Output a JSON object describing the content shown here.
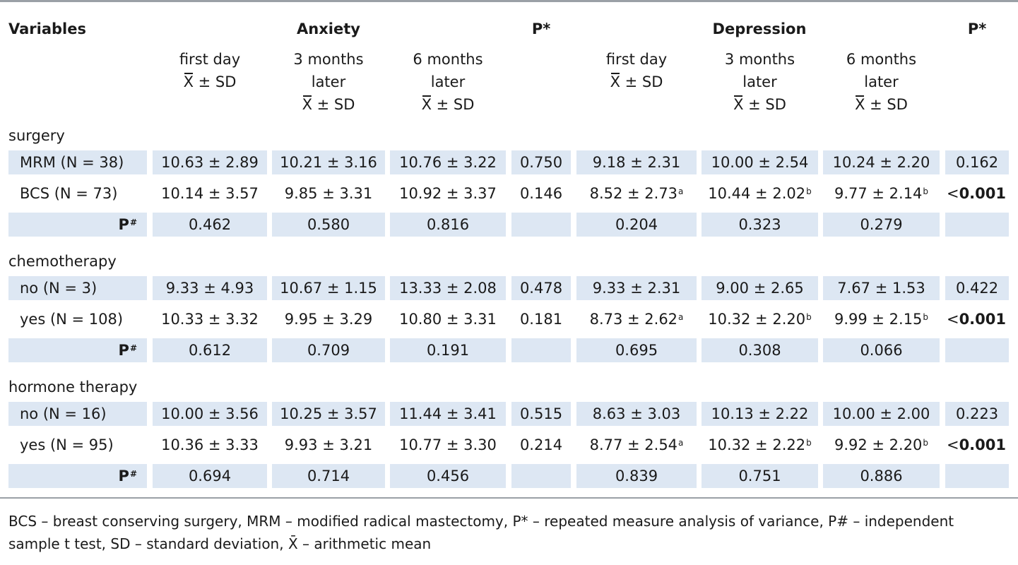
{
  "header": {
    "variables": "Variables",
    "anxiety": "Anxiety",
    "p_star": "P*",
    "depression": "Depression",
    "p_star_2": "P*"
  },
  "subheader": [
    [
      "first day",
      "X̄ ± SD"
    ],
    [
      "3 months",
      "later",
      "X̄ ± SD"
    ],
    [
      "6 months",
      "later",
      "X̄ ± SD"
    ],
    [],
    [
      "first day",
      "X̄ ± SD"
    ],
    [
      "3 months",
      "later",
      "X̄ ± SD"
    ],
    [
      "6 months",
      "later",
      "X̄ ± SD"
    ],
    []
  ],
  "groups": [
    {
      "label": "surgery",
      "rows": [
        {
          "label": "MRM (N = 38)",
          "cells": [
            "10.63 ± 2.89",
            "10.21 ± 3.16",
            "10.76 ± 3.22",
            "0.750",
            "9.18 ± 2.31",
            "10.00 ± 2.54",
            "10.24 ± 2.20",
            "0.162"
          ]
        },
        {
          "label": "BCS (N = 73)",
          "cells": [
            "10.14 ± 3.57",
            "9.85 ± 3.31",
            "10.92 ± 3.37",
            "0.146",
            "8.52 ± 2.73",
            "10.44 ± 2.02",
            "9.77 ± 2.14",
            "< 0.001"
          ],
          "sups": [
            "",
            "",
            "",
            "",
            "a",
            "b",
            "b",
            ""
          ]
        },
        {
          "label": "P#",
          "cells": [
            "0.462",
            "0.580",
            "0.816",
            "",
            "0.204",
            "0.323",
            "0.279",
            ""
          ]
        }
      ]
    },
    {
      "label": "chemotherapy",
      "rows": [
        {
          "label": "no (N = 3)",
          "cells": [
            "9.33 ± 4.93",
            "10.67 ± 1.15",
            "13.33 ± 2.08",
            "0.478",
            "9.33 ± 2.31",
            "9.00 ± 2.65",
            "7.67 ± 1.53",
            "0.422"
          ]
        },
        {
          "label": "yes (N = 108)",
          "cells": [
            "10.33 ± 3.32",
            "9.95 ± 3.29",
            "10.80 ± 3.31",
            "0.181",
            "8.73 ± 2.62",
            "10.32 ± 2.20",
            "9.99 ± 2.15",
            "< 0.001"
          ],
          "sups": [
            "",
            "",
            "",
            "",
            "a",
            "b",
            "b",
            ""
          ]
        },
        {
          "label": "P#",
          "cells": [
            "0.612",
            "0.709",
            "0.191",
            "",
            "0.695",
            "0.308",
            "0.066",
            ""
          ]
        }
      ]
    },
    {
      "label": "hormone therapy",
      "rows": [
        {
          "label": "no (N = 16)",
          "cells": [
            "10.00 ± 3.56",
            "10.25 ± 3.57",
            "11.44 ± 3.41",
            "0.515",
            "8.63 ± 3.03",
            "10.13 ± 2.22",
            "10.00 ± 2.00",
            "0.223"
          ]
        },
        {
          "label": "yes (N = 95)",
          "cells": [
            "10.36 ± 3.33",
            "9.93 ± 3.21",
            "10.77 ± 3.30",
            "0.214",
            "8.77 ± 2.54",
            "10.32 ± 2.22",
            "9.92 ± 2.20",
            "< 0.001"
          ],
          "sups": [
            "",
            "",
            "",
            "",
            "a",
            "b",
            "b",
            ""
          ]
        },
        {
          "label": "P#",
          "cells": [
            "0.694",
            "0.714",
            "0.456",
            "",
            "0.839",
            "0.751",
            "0.886",
            ""
          ]
        }
      ]
    }
  ],
  "footnote": "BCS – breast conserving surgery, MRM – modified radical mastectomy, P* – repeated measure analysis of variance, P# – independent sample t test, SD – standard deviation, X̄ – arithmetic mean",
  "colors": {
    "row_shade": "#dde7f3",
    "rule": "#9aa0a6",
    "text": "#1a1a1a"
  }
}
